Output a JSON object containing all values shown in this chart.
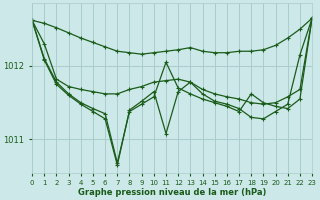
{
  "title": "Graphe pression niveau de la mer (hPa)",
  "bg_color": "#cce8e8",
  "grid_color": "#aacccc",
  "line_color": "#1a5c1a",
  "xlim": [
    0,
    23
  ],
  "ylim": [
    1010.55,
    1012.85
  ],
  "yticks": [
    1011,
    1012
  ],
  "xticks": [
    0,
    1,
    2,
    3,
    4,
    5,
    6,
    7,
    8,
    9,
    10,
    11,
    12,
    13,
    14,
    15,
    16,
    17,
    18,
    19,
    20,
    21,
    22,
    23
  ],
  "series": {
    "s1_x": [
      0,
      1,
      2,
      3,
      4,
      5,
      6,
      7,
      8,
      9,
      10,
      11,
      12,
      13,
      14,
      15,
      16,
      17,
      18,
      19,
      20,
      21,
      22,
      23
    ],
    "s1_y": [
      1012.62,
      1012.58,
      1012.52,
      1012.45,
      1012.38,
      1012.32,
      1012.26,
      1012.2,
      1012.18,
      1012.16,
      1012.18,
      1012.2,
      1012.22,
      1012.25,
      1012.2,
      1012.18,
      1012.18,
      1012.2,
      1012.2,
      1012.22,
      1012.28,
      1012.38,
      1012.5,
      1012.65
    ],
    "s2_x": [
      0,
      1,
      2,
      3,
      4,
      5,
      6,
      7,
      8,
      9,
      10,
      11,
      12,
      13,
      14,
      15,
      16,
      17,
      18,
      19,
      20,
      21,
      22,
      23
    ],
    "s2_y": [
      1012.62,
      1012.3,
      1011.82,
      1011.72,
      1011.68,
      1011.65,
      1011.62,
      1011.62,
      1011.68,
      1011.72,
      1011.78,
      1011.8,
      1011.82,
      1011.78,
      1011.68,
      1011.62,
      1011.58,
      1011.55,
      1011.5,
      1011.48,
      1011.5,
      1011.58,
      1011.68,
      1012.65
    ],
    "s3_x": [
      0,
      1,
      2,
      3,
      4,
      5,
      6,
      7,
      8,
      9,
      10,
      11,
      12,
      13,
      14,
      15,
      16,
      17,
      18,
      19,
      20,
      21,
      22,
      23
    ],
    "s3_y": [
      1012.62,
      1012.1,
      1011.78,
      1011.62,
      1011.5,
      1011.42,
      1011.35,
      1010.68,
      1011.38,
      1011.48,
      1011.58,
      1012.05,
      1011.7,
      1011.62,
      1011.55,
      1011.5,
      1011.45,
      1011.38,
      1011.62,
      1011.5,
      1011.45,
      1011.42,
      1011.55,
      1012.65
    ],
    "s4_x": [
      0,
      1,
      2,
      3,
      4,
      5,
      6,
      7,
      8,
      9,
      10,
      11,
      12,
      13,
      14,
      15,
      16,
      17,
      18,
      19,
      20,
      21,
      22,
      23
    ],
    "s4_y": [
      1012.62,
      1012.08,
      1011.75,
      1011.6,
      1011.48,
      1011.38,
      1011.28,
      1010.65,
      1011.4,
      1011.52,
      1011.65,
      1011.08,
      1011.65,
      1011.78,
      1011.62,
      1011.52,
      1011.48,
      1011.42,
      1011.3,
      1011.28,
      1011.38,
      1011.48,
      1012.15,
      1012.65
    ]
  }
}
